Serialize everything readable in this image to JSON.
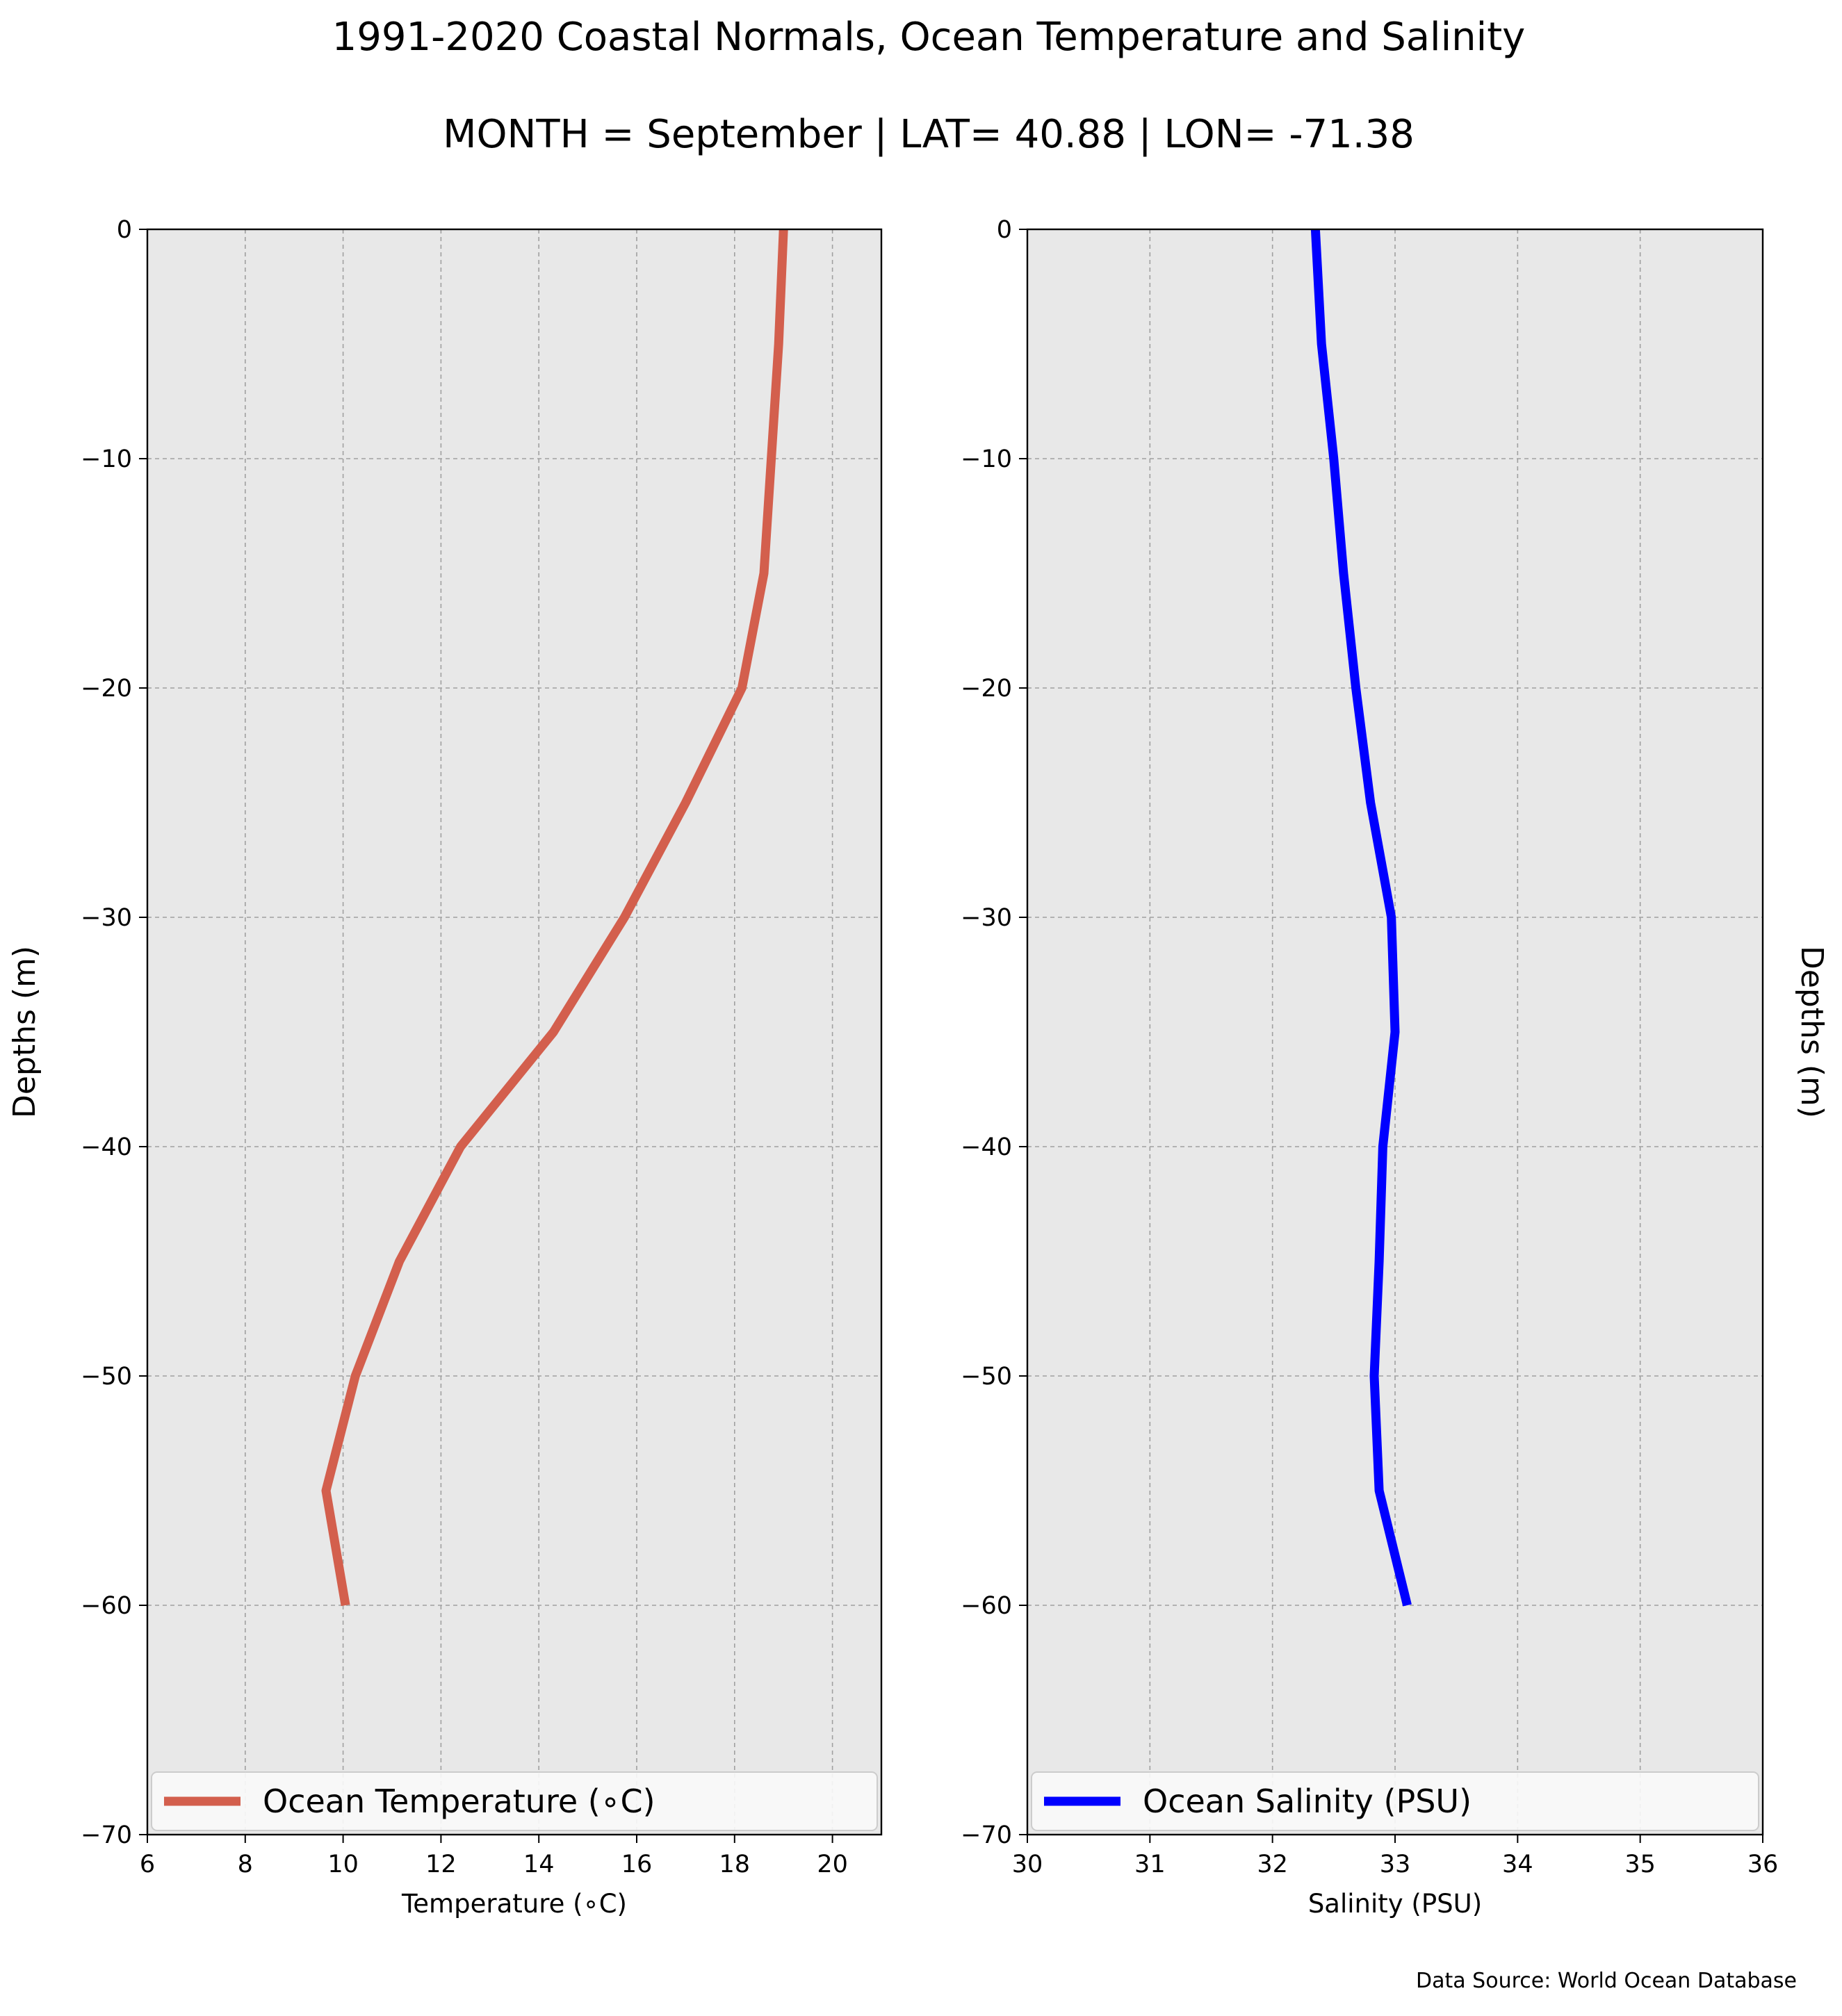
{
  "figure": {
    "title": "1991-2020 Coastal Normals, Ocean Temperature and Salinity",
    "subtitle": "MONTH = September | LAT= 40.88 | LON= -71.38",
    "source_note": "Data Source: World Ocean Database"
  },
  "colors": {
    "temperature_line": "#d35f4d",
    "salinity_line": "#0000ff",
    "plot_background": "#e8e8e8",
    "grid": "#a0a0a0"
  },
  "chart_data": [
    {
      "type": "line",
      "xlabel": "Temperature ($^\\circ$C)",
      "xlabel_display": "Temperature (∘C)",
      "ylabel": "Depths (m)",
      "xlim": [
        6,
        21
      ],
      "ylim": [
        -70,
        0
      ],
      "xticks": [
        6,
        8,
        10,
        12,
        14,
        16,
        18,
        20
      ],
      "yticks": [
        0,
        -10,
        -20,
        -30,
        -40,
        -50,
        -60,
        -70
      ],
      "grid": true,
      "legend_position": "bottom",
      "series": [
        {
          "name": "Ocean Temperature (∘C)",
          "x": [
            19.0,
            18.9,
            18.75,
            18.6,
            18.15,
            17.0,
            15.75,
            14.3,
            12.4,
            11.15,
            10.25,
            9.65,
            10.05
          ],
          "y": [
            0,
            -5,
            -10,
            -15,
            -20,
            -25,
            -30,
            -35,
            -40,
            -45,
            -50,
            -55,
            -60
          ]
        }
      ]
    },
    {
      "type": "line",
      "xlabel": "Salinity (PSU)",
      "ylabel": "Depths (m)",
      "ylabel_side": "right",
      "xlim": [
        30,
        36
      ],
      "ylim": [
        -70,
        0
      ],
      "xticks": [
        30,
        31,
        32,
        33,
        34,
        35,
        36
      ],
      "yticks": [
        0,
        -10,
        -20,
        -30,
        -40,
        -50,
        -60,
        -70
      ],
      "grid": true,
      "legend_position": "bottom",
      "series": [
        {
          "name": "Ocean Salinity (PSU)",
          "x": [
            32.35,
            32.4,
            32.5,
            32.58,
            32.68,
            32.8,
            32.97,
            33.0,
            32.9,
            32.87,
            32.83,
            32.87,
            33.1
          ],
          "y": [
            0,
            -5,
            -10,
            -15,
            -20,
            -25,
            -30,
            -35,
            -40,
            -45,
            -50,
            -55,
            -60
          ]
        }
      ]
    }
  ]
}
